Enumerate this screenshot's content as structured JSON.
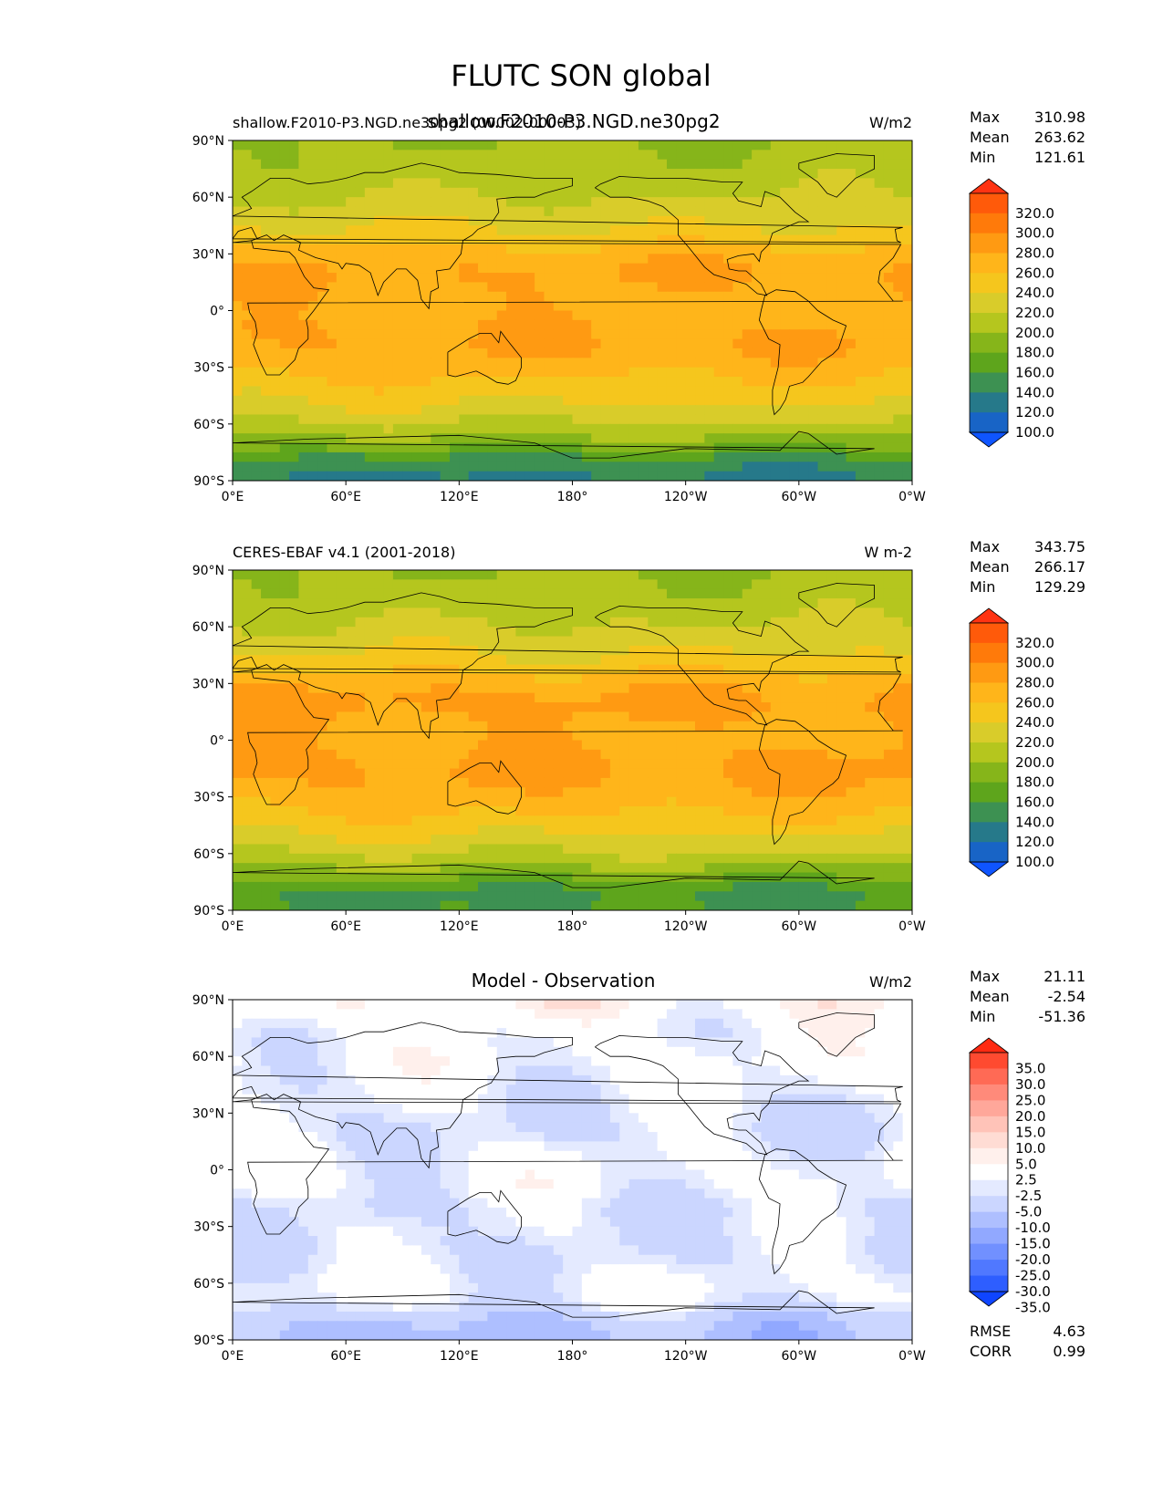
{
  "figure_title": "FLUTC SON global",
  "overlay_title": "shallow.F2010-P3.NGD.ne30pg2",
  "panels": [
    {
      "title_left": "shallow.F2010-P3.NGD.ne30pg2 (00002-00003)",
      "title_center": "",
      "title_right": "W/m2",
      "stats": {
        "labels": [
          "Max",
          "Mean",
          "Min"
        ],
        "values": [
          "310.98",
          "263.62",
          "121.61"
        ]
      },
      "colorbar": {
        "labels": [
          "320.0",
          "300.0",
          "280.0",
          "260.0",
          "240.0",
          "220.0",
          "200.0",
          "180.0",
          "160.0",
          "140.0",
          "120.0",
          "100.0"
        ],
        "colors": [
          "#ff3312",
          "#ff5a0a",
          "#ff7a0a",
          "#ff9a12",
          "#ffb51a",
          "#f5c61d",
          "#d9cc2a",
          "#b5c61e",
          "#86b51a",
          "#5ea51c",
          "#3d9152",
          "#26798a",
          "#1864c6",
          "#0f55ff"
        ],
        "arrows": true
      },
      "extra_stats": null
    },
    {
      "title_left": "CERES-EBAF v4.1 (2001-2018)",
      "title_center": "",
      "title_right": "W m-2",
      "stats": {
        "labels": [
          "Max",
          "Mean",
          "Min"
        ],
        "values": [
          "343.75",
          "266.17",
          "129.29"
        ]
      },
      "colorbar": {
        "labels": [
          "320.0",
          "300.0",
          "280.0",
          "260.0",
          "240.0",
          "220.0",
          "200.0",
          "180.0",
          "160.0",
          "140.0",
          "120.0",
          "100.0"
        ],
        "colors": [
          "#ff3312",
          "#ff5a0a",
          "#ff7a0a",
          "#ff9a12",
          "#ffb51a",
          "#f5c61d",
          "#d9cc2a",
          "#b5c61e",
          "#86b51a",
          "#5ea51c",
          "#3d9152",
          "#26798a",
          "#1864c6",
          "#0f55ff"
        ],
        "arrows": true
      },
      "extra_stats": null
    },
    {
      "title_left": "",
      "title_center": "Model - Observation",
      "title_right": "W/m2",
      "stats": {
        "labels": [
          "Max",
          "Mean",
          "Min"
        ],
        "values": [
          "21.11",
          "-2.54",
          "-51.36"
        ]
      },
      "colorbar": {
        "labels": [
          "35.0",
          "30.0",
          "25.0",
          "20.0",
          "15.0",
          "10.0",
          "5.0",
          "2.5",
          "-2.5",
          "-5.0",
          "-10.0",
          "-15.0",
          "-20.0",
          "-25.0",
          "-30.0",
          "-35.0"
        ],
        "colors": [
          "#ff2a12",
          "#ff4a30",
          "#ff6a55",
          "#ff8a7a",
          "#ffa79a",
          "#ffc3b8",
          "#ffdcd4",
          "#fff0ec",
          "#ffffff",
          "#e4eaff",
          "#cbd6ff",
          "#aebfff",
          "#91a8ff",
          "#7190ff",
          "#5078ff",
          "#2e5eff",
          "#0f45ff"
        ],
        "arrows": true
      },
      "extra_stats": {
        "labels": [
          "RMSE",
          "CORR"
        ],
        "values": [
          "4.63",
          "0.99"
        ]
      }
    }
  ],
  "axes": {
    "lat_ticks": [
      "90°N",
      "60°N",
      "30°N",
      "0°",
      "30°S",
      "60°S",
      "90°S"
    ],
    "lon_ticks": [
      "0°E",
      "60°E",
      "120°E",
      "180°",
      "120°W",
      "60°W",
      "0°W"
    ]
  },
  "chart_data": [
    {
      "type": "heatmap",
      "title": "shallow.F2010-P3.NGD.ne30pg2 (00002-00003)",
      "units": "W/m2",
      "x_range": [
        0,
        360
      ],
      "y_range": [
        -90,
        90
      ],
      "levels": [
        100,
        120,
        140,
        160,
        180,
        200,
        220,
        240,
        260,
        280,
        300,
        320
      ],
      "max": 310.98,
      "mean": 263.62,
      "min": 121.61,
      "zonal_pattern": {
        "lat": [
          -90,
          -80,
          -70,
          -60,
          -50,
          -40,
          -30,
          -20,
          -10,
          0,
          10,
          20,
          30,
          40,
          50,
          60,
          70,
          80,
          90
        ],
        "value": [
          135,
          150,
          190,
          218,
          238,
          255,
          268,
          280,
          278,
          272,
          276,
          282,
          270,
          245,
          232,
          220,
          212,
          205,
          200
        ]
      }
    },
    {
      "type": "heatmap",
      "title": "CERES-EBAF v4.1 (2001-2018)",
      "units": "W m-2",
      "x_range": [
        0,
        360
      ],
      "y_range": [
        -90,
        90
      ],
      "levels": [
        100,
        120,
        140,
        160,
        180,
        200,
        220,
        240,
        260,
        280,
        300,
        320
      ],
      "max": 343.75,
      "mean": 266.17,
      "min": 129.29,
      "zonal_pattern": {
        "lat": [
          -90,
          -80,
          -70,
          -60,
          -50,
          -40,
          -30,
          -20,
          -10,
          0,
          10,
          20,
          30,
          40,
          50,
          60,
          70,
          80,
          90
        ],
        "value": [
          160,
          155,
          190,
          220,
          240,
          258,
          272,
          283,
          282,
          275,
          278,
          286,
          275,
          248,
          235,
          222,
          212,
          205,
          200
        ]
      }
    },
    {
      "type": "heatmap",
      "title": "Model - Observation",
      "units": "W/m2",
      "x_range": [
        0,
        360
      ],
      "y_range": [
        -90,
        90
      ],
      "levels": [
        -35,
        -30,
        -25,
        -20,
        -15,
        -10,
        -5,
        -2.5,
        2.5,
        5,
        10,
        15,
        20,
        25,
        30,
        35
      ],
      "max": 21.11,
      "mean": -2.54,
      "min": -51.36,
      "rmse": 4.63,
      "corr": 0.99,
      "zonal_pattern": {
        "lat": [
          -90,
          -80,
          -70,
          -60,
          -50,
          -40,
          -30,
          -20,
          -10,
          0,
          10,
          20,
          30,
          40,
          50,
          60,
          70,
          80,
          90
        ],
        "value": [
          -12,
          -10,
          -3,
          -2,
          -4,
          -5,
          -4,
          -5,
          -2,
          -2,
          -3,
          -5,
          -4,
          -3,
          -2,
          -1,
          -2,
          0,
          2
        ]
      }
    }
  ]
}
